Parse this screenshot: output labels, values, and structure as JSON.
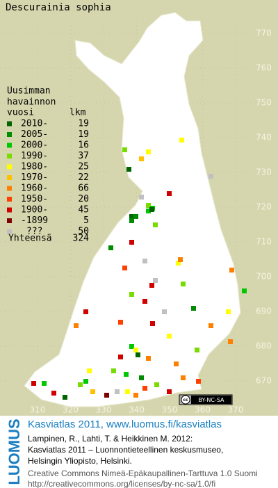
{
  "title": "Descurainia sophia",
  "legend": {
    "heading": [
      "Uusimman",
      "havainnon",
      "vuosi"
    ],
    "count_heading": "lkm",
    "rows": [
      {
        "label": "2010-",
        "count": 19,
        "color": "#006400"
      },
      {
        "label": "2005-",
        "count": 19,
        "color": "#008c00"
      },
      {
        "label": "2000-",
        "count": 16,
        "color": "#00c800"
      },
      {
        "label": "1990-",
        "count": 37,
        "color": "#78dc00"
      },
      {
        "label": "1980-",
        "count": 25,
        "color": "#ffff00"
      },
      {
        "label": "1970-",
        "count": 22,
        "color": "#ffc000"
      },
      {
        "label": "1960-",
        "count": 66,
        "color": "#ff8000"
      },
      {
        "label": "1950-",
        "count": 20,
        "color": "#ff4000"
      },
      {
        "label": "1900-",
        "count": 45,
        "color": "#d00000"
      },
      {
        "label": "-1899",
        "count": 5,
        "color": "#800000"
      },
      {
        "label": "???",
        "count": 50,
        "color": "#c0c0c0"
      }
    ],
    "total_label": "Yhteensä",
    "total": 324
  },
  "grid_labels": {
    "north": [
      770,
      760,
      750,
      740,
      730,
      720,
      710,
      700,
      690,
      680,
      670
    ],
    "east": [
      310,
      320,
      330,
      340,
      350,
      360,
      370
    ]
  },
  "license_badge": "BY-NC-SA",
  "footer": {
    "brand": "LUOMUS",
    "headline": "Kasviatlas 2011, www.luomus.fi/kasviatlas",
    "citation": [
      "Lampinen, R., Lahti, T. & Heikkinen M. 2012:",
      "Kasviatlas 2011 – Luonnontieteellinen keskusmuseo,",
      "Helsingin Yliopisto, Helsinki."
    ],
    "license": [
      "Creative Commons Nimeä-Epäkaupallinen-Tarttuva 1.0 Suomi",
      "http://creativecommons.org/licenses/by-nc-sa/1.0/fi"
    ]
  }
}
